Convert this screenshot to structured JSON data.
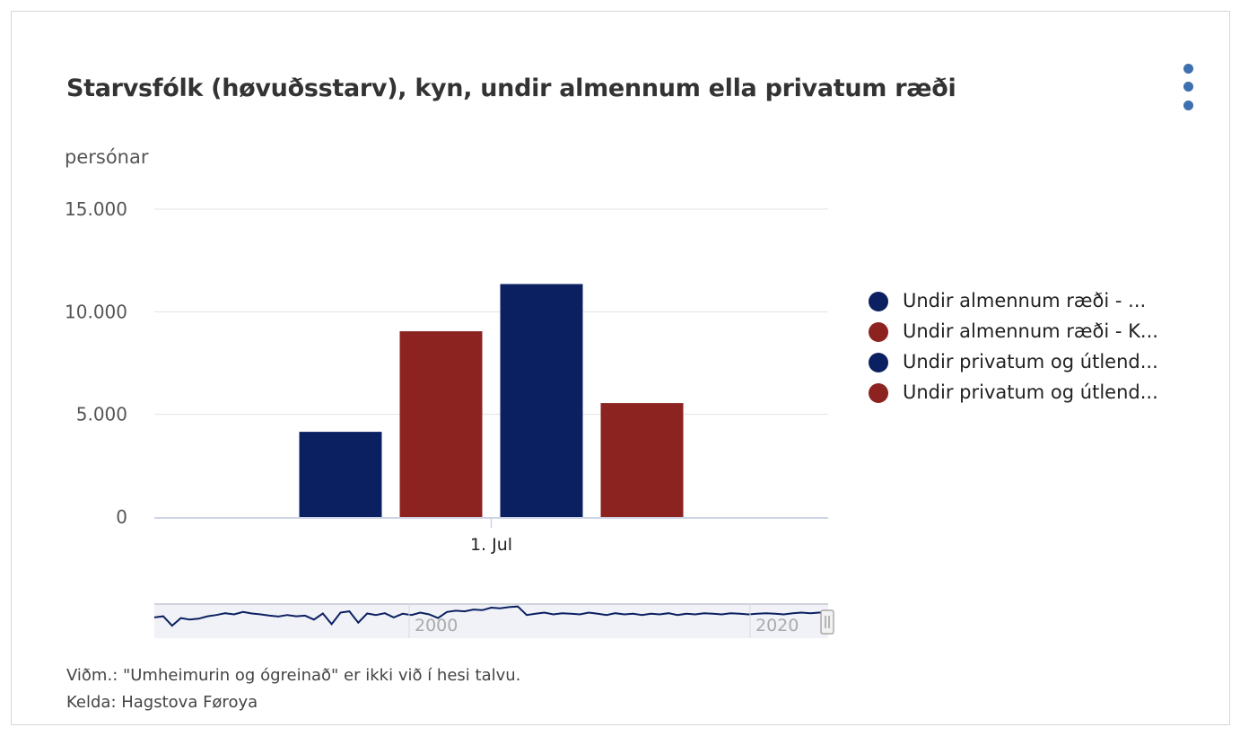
{
  "title": "Starvsfólk (høvuðsstarv), kyn, undir almennum ella privatum ræði",
  "unit_label": "persónar",
  "menu_icon": "vertical-dots-icon",
  "colors": {
    "navy": "#0b2060",
    "red": "#8c2320",
    "grid": "#e3e3e3",
    "axis": "#ccd3e4"
  },
  "chart_data": {
    "type": "bar",
    "categories": [
      "1. Jul"
    ],
    "ylim": [
      0,
      15000
    ],
    "yticks": [
      "0",
      "5.000",
      "10.000",
      "15.000"
    ],
    "ytick_values": [
      0,
      5000,
      10000,
      15000
    ],
    "series": [
      {
        "name": "Undir almennum ræði - ...",
        "values": [
          4150
        ],
        "color": "#0b2060"
      },
      {
        "name": "Undir almennum ræði - K...",
        "values": [
          9050
        ],
        "color": "#8c2320"
      },
      {
        "name": "Undir privatum og útlend...",
        "values": [
          11350
        ],
        "color": "#0b2060"
      },
      {
        "name": "Undir privatum og útlend...",
        "values": [
          5550
        ],
        "color": "#8c2320"
      }
    ],
    "legend_position": "right",
    "grid": true,
    "navigator": {
      "labels": [
        "2000",
        "2020"
      ],
      "series_profile": [
        0.62,
        0.66,
        0.35,
        0.6,
        0.55,
        0.58,
        0.66,
        0.7,
        0.76,
        0.72,
        0.8,
        0.75,
        0.72,
        0.68,
        0.65,
        0.7,
        0.66,
        0.68,
        0.55,
        0.75,
        0.4,
        0.78,
        0.82,
        0.45,
        0.75,
        0.7,
        0.76,
        0.62,
        0.74,
        0.7,
        0.78,
        0.72,
        0.6,
        0.8,
        0.84,
        0.82,
        0.88,
        0.86,
        0.94,
        0.92,
        0.96,
        0.98,
        0.7,
        0.74,
        0.78,
        0.72,
        0.76,
        0.74,
        0.72,
        0.78,
        0.74,
        0.7,
        0.76,
        0.72,
        0.74,
        0.7,
        0.74,
        0.72,
        0.76,
        0.7,
        0.74,
        0.72,
        0.76,
        0.74,
        0.72,
        0.76,
        0.74,
        0.72,
        0.74,
        0.76,
        0.74,
        0.72,
        0.76,
        0.78,
        0.76,
        0.78,
        0.8
      ]
    }
  },
  "footnotes": [
    "Viðm.: \"Umheimurin og ógreinað\" er ikki við í hesi talvu.",
    "Kelda: Hagstova Føroya"
  ]
}
